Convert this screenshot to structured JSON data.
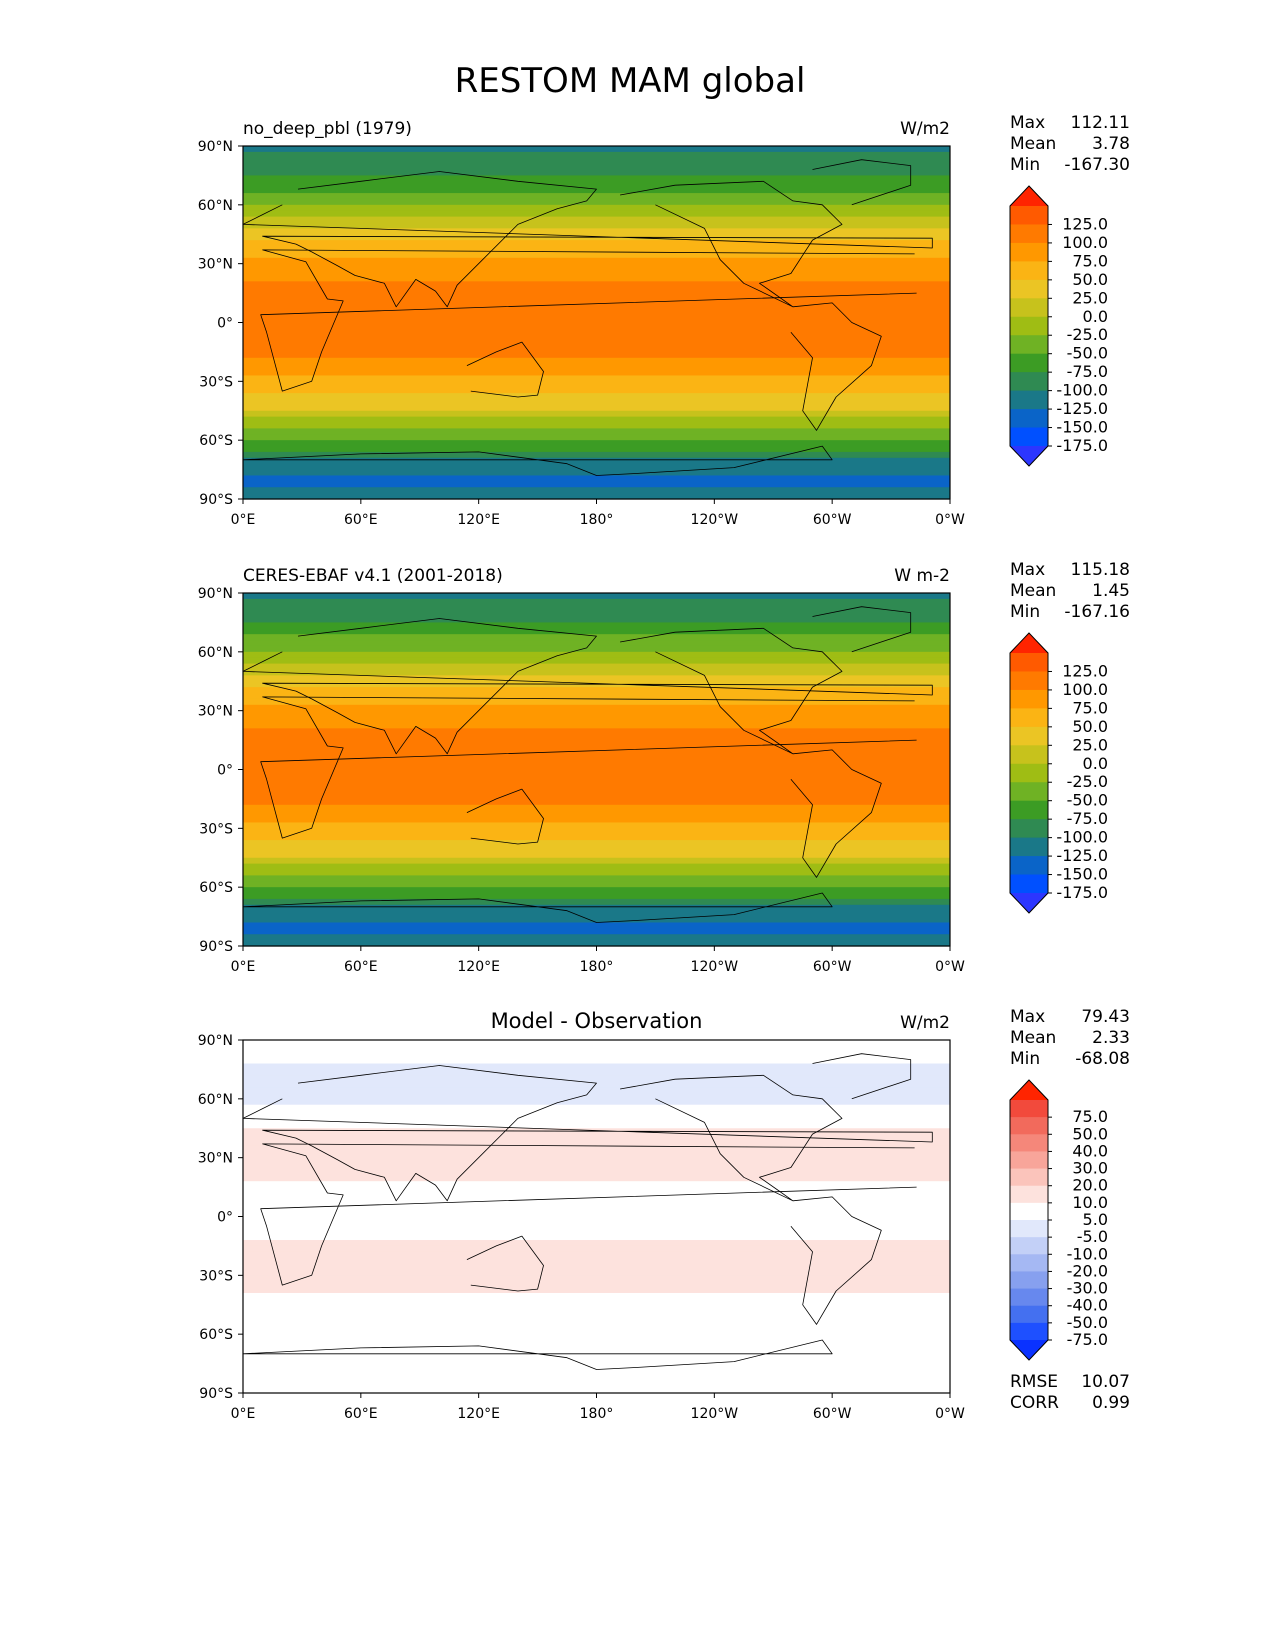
{
  "title": "RESTOM MAM global",
  "chart_data": [
    {
      "type": "heatmap",
      "name": "test",
      "title": "no_deep_pbl (1979)",
      "units": "W/m2",
      "stats": {
        "max": "112.11",
        "mean": "3.78",
        "min": "-167.30"
      },
      "stat_labels": [
        "Max",
        "Mean",
        "Min"
      ],
      "colorbar": {
        "ticks": [
          "125.0",
          "100.0",
          "75.0",
          "50.0",
          "25.0",
          "0.0",
          "-25.0",
          "-50.0",
          "-75.0",
          "-100.0",
          "-125.0",
          "-150.0",
          "-175.0"
        ],
        "colors": [
          "#ff2400",
          "#ff5a00",
          "#ff7a00",
          "#ff9800",
          "#fbb414",
          "#ebc524",
          "#c7c21c",
          "#9fbd14",
          "#6fb224",
          "#3c9c24",
          "#2f8a52",
          "#1a7888",
          "#0a64c8",
          "#0050ff",
          "#2c36ff"
        ]
      },
      "xticks": [
        "0°E",
        "60°E",
        "120°E",
        "180°",
        "120°W",
        "60°W",
        "0°W"
      ],
      "yticks": [
        "90°N",
        "60°N",
        "30°N",
        "0°",
        "30°S",
        "60°S",
        "90°S"
      ],
      "lat_profile": [
        [
          90,
          -130
        ],
        [
          75,
          -105
        ],
        [
          60,
          -50
        ],
        [
          45,
          15
        ],
        [
          30,
          55
        ],
        [
          15,
          85
        ],
        [
          0,
          90
        ],
        [
          -15,
          80
        ],
        [
          -30,
          45
        ],
        [
          -45,
          -5
        ],
        [
          -60,
          -75
        ],
        [
          -70,
          -125
        ],
        [
          -80,
          -160
        ],
        [
          -90,
          -130
        ]
      ]
    },
    {
      "type": "heatmap",
      "name": "reference",
      "title": "CERES-EBAF v4.1 (2001-2018)",
      "units": "W m-2",
      "stats": {
        "max": "115.18",
        "mean": "1.45",
        "min": "-167.16"
      },
      "stat_labels": [
        "Max",
        "Mean",
        "Min"
      ],
      "colorbar": {
        "ticks": [
          "125.0",
          "100.0",
          "75.0",
          "50.0",
          "25.0",
          "0.0",
          "-25.0",
          "-50.0",
          "-75.0",
          "-100.0",
          "-125.0",
          "-150.0",
          "-175.0"
        ],
        "colors": [
          "#ff2400",
          "#ff5a00",
          "#ff7a00",
          "#ff9800",
          "#fbb414",
          "#ebc524",
          "#c7c21c",
          "#9fbd14",
          "#6fb224",
          "#3c9c24",
          "#2f8a52",
          "#1a7888",
          "#0a64c8",
          "#0050ff",
          "#2c36ff"
        ]
      },
      "xticks": [
        "0°E",
        "60°E",
        "120°E",
        "180°",
        "120°W",
        "60°W",
        "0°W"
      ],
      "yticks": [
        "90°N",
        "60°N",
        "30°N",
        "0°",
        "30°S",
        "60°S",
        "90°S"
      ],
      "lat_profile": [
        [
          90,
          -130
        ],
        [
          75,
          -100
        ],
        [
          60,
          -45
        ],
        [
          45,
          15
        ],
        [
          30,
          55
        ],
        [
          15,
          85
        ],
        [
          0,
          90
        ],
        [
          -15,
          82
        ],
        [
          -30,
          45
        ],
        [
          -45,
          -5
        ],
        [
          -60,
          -75
        ],
        [
          -70,
          -130
        ],
        [
          -80,
          -160
        ],
        [
          -90,
          -130
        ]
      ]
    },
    {
      "type": "heatmap",
      "name": "difference",
      "title": "Model - Observation",
      "units": "W/m2",
      "stats": {
        "max": "79.43",
        "mean": "2.33",
        "min": "-68.08"
      },
      "stat_labels": [
        "Max",
        "Mean",
        "Min"
      ],
      "metrics": {
        "rmse": "10.07",
        "corr": "0.99"
      },
      "metric_labels": [
        "RMSE",
        "CORR"
      ],
      "colorbar": {
        "ticks": [
          "75.0",
          "50.0",
          "40.0",
          "30.0",
          "20.0",
          "10.0",
          "5.0",
          "-5.0",
          "-10.0",
          "-20.0",
          "-30.0",
          "-40.0",
          "-50.0",
          "-75.0"
        ],
        "colors": [
          "#ff2400",
          "#f24a3c",
          "#f26a5c",
          "#f5877a",
          "#f8a59a",
          "#fbc4bb",
          "#fde2dd",
          "#ffffff",
          "#e1e8fb",
          "#c3d0f7",
          "#a5b8f3",
          "#87a0ef",
          "#6788ee",
          "#4470f0",
          "#1e50ff",
          "#0a32ff"
        ]
      },
      "xticks": [
        "0°E",
        "60°E",
        "120°E",
        "180°",
        "120°W",
        "60°W",
        "0°W"
      ],
      "yticks": [
        "90°N",
        "60°N",
        "30°N",
        "0°",
        "30°S",
        "60°S",
        "90°S"
      ],
      "lat_profile": [
        [
          90,
          3
        ],
        [
          75,
          -6
        ],
        [
          60,
          -8
        ],
        [
          45,
          6
        ],
        [
          30,
          10
        ],
        [
          15,
          4
        ],
        [
          0,
          -4
        ],
        [
          -15,
          6
        ],
        [
          -30,
          8
        ],
        [
          -45,
          2
        ],
        [
          -60,
          5
        ],
        [
          -70,
          2
        ],
        [
          -80,
          -1
        ],
        [
          -90,
          0
        ]
      ]
    }
  ]
}
